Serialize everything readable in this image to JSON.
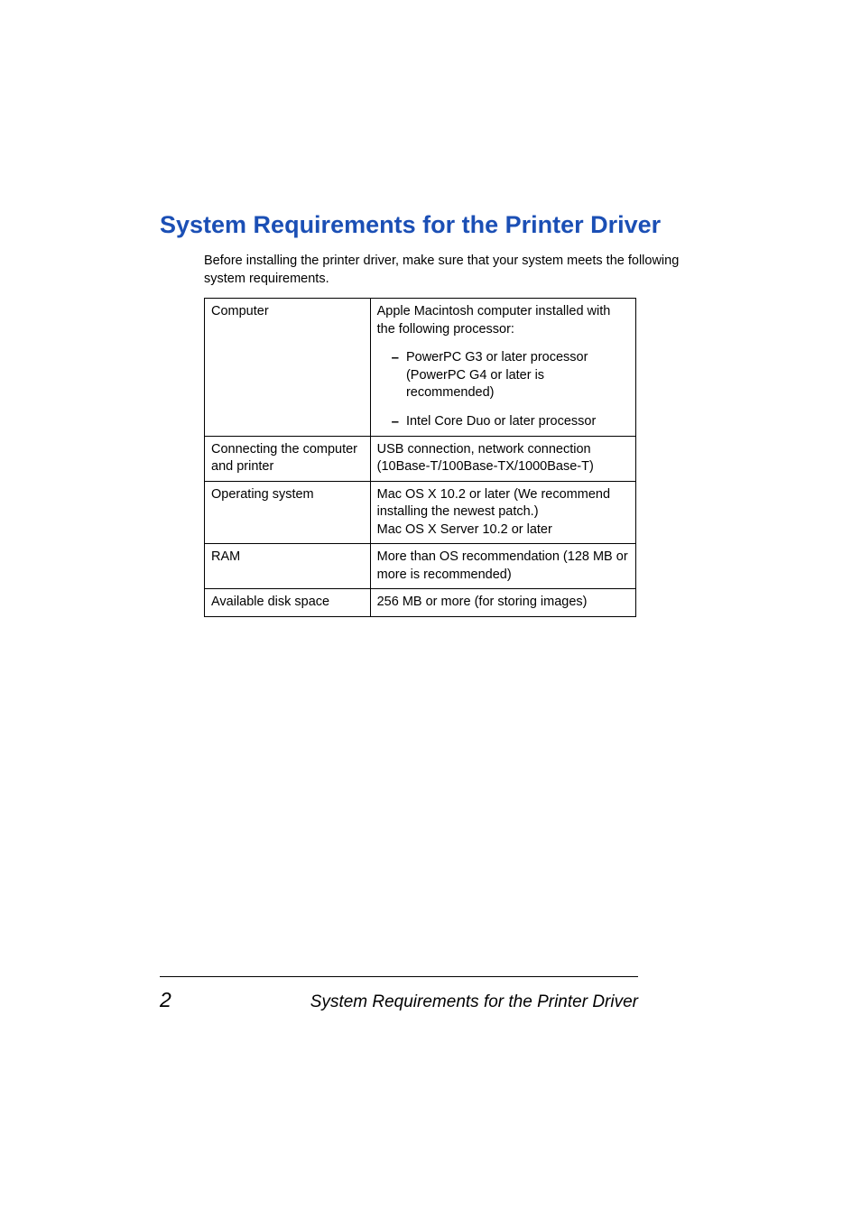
{
  "heading": "System Requirements for the Printer Driver",
  "intro": "Before installing the printer driver, make sure that your system meets the following system requirements.",
  "table": {
    "rows": [
      {
        "label": "Computer",
        "intro": "Apple Macintosh computer installed with the following processor:",
        "bullets": [
          "PowerPC G3 or later processor (PowerPC G4 or later is recommended)",
          "Intel Core Duo or later processor"
        ]
      },
      {
        "label": "Connecting the computer and printer",
        "value": "USB connection, network connection (10Base-T/100Base-TX/1000Base-T)"
      },
      {
        "label": "Operating system",
        "value": "Mac OS X 10.2 or later (We recommend installing the newest patch.)\nMac OS X Server 10.2 or later"
      },
      {
        "label": "RAM",
        "value": "More than OS recommendation (128 MB or more is recommended)"
      },
      {
        "label": "Available disk space",
        "value": "256 MB or more (for storing images)"
      }
    ]
  },
  "footer": {
    "page_number": "2",
    "title": "System Requirements for the Printer Driver"
  },
  "colors": {
    "heading_color": "#1b4fb5",
    "text_color": "#000000",
    "background": "#ffffff",
    "border_color": "#000000"
  },
  "typography": {
    "heading_fontsize": 27,
    "body_fontsize": 14.5,
    "footer_page_fontsize": 23,
    "footer_title_fontsize": 19
  }
}
